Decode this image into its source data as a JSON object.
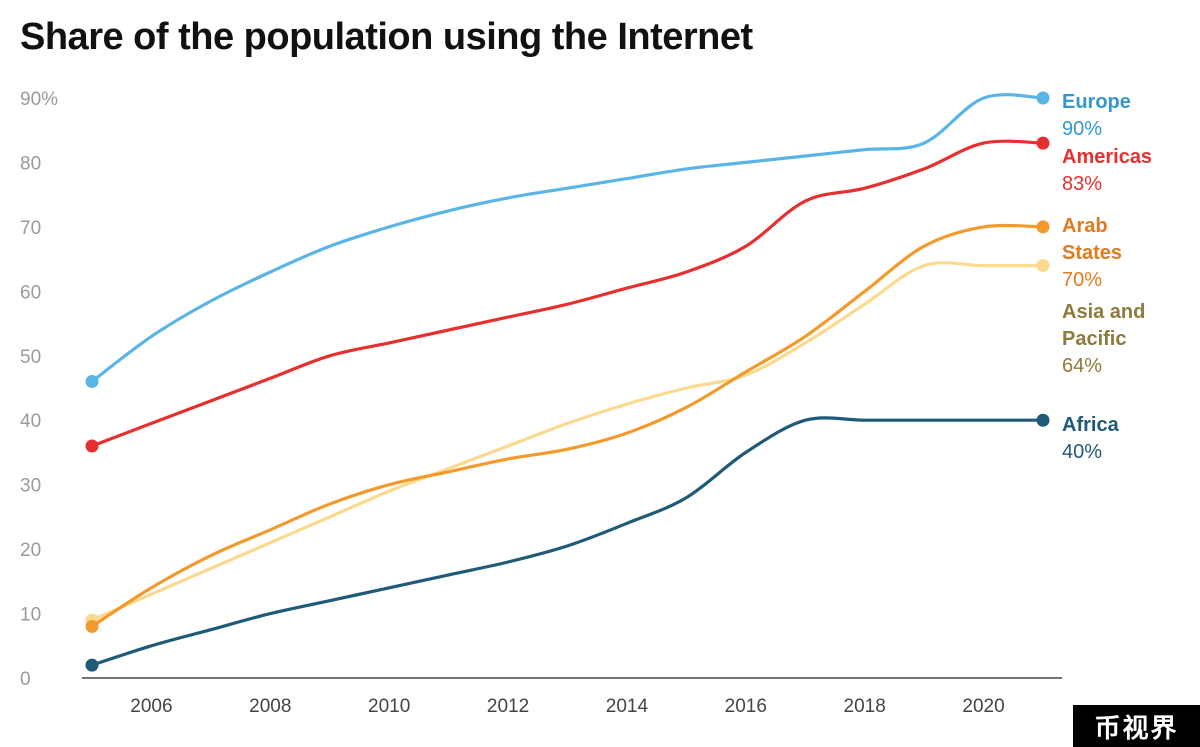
{
  "chart_data": {
    "type": "line",
    "title": "Share of the population using the Internet",
    "xlabel": "",
    "ylabel": "",
    "x": [
      2005,
      2006,
      2007,
      2008,
      2009,
      2010,
      2011,
      2012,
      2013,
      2014,
      2015,
      2016,
      2017,
      2018,
      2019,
      2020,
      2021
    ],
    "xticks": [
      "2006",
      "2008",
      "2010",
      "2012",
      "2014",
      "2016",
      "2018",
      "2020"
    ],
    "xlim": [
      2005,
      2021
    ],
    "yticks": [
      "90%",
      "80",
      "70",
      "60",
      "50",
      "40",
      "30",
      "20",
      "10",
      "0"
    ],
    "ylim": [
      0,
      90
    ],
    "series": [
      {
        "name": "Europe",
        "label_lines": [
          "Europe"
        ],
        "value_label": "90%",
        "color": "#5ab4e5",
        "label_color": "#3399cc",
        "values": [
          46,
          53,
          58.5,
          63,
          67,
          70,
          72.5,
          74.5,
          76,
          77.5,
          79,
          80,
          81,
          82,
          83,
          90,
          90
        ]
      },
      {
        "name": "Americas",
        "label_lines": [
          "Americas"
        ],
        "value_label": "83%",
        "color": "#e63030",
        "label_color": "#e63030",
        "values": [
          36,
          39.5,
          43,
          46.5,
          50,
          52,
          54,
          56,
          58,
          60.5,
          63,
          67,
          74,
          76,
          79,
          83,
          83
        ]
      },
      {
        "name": "Arab States",
        "label_lines": [
          "Arab",
          "States"
        ],
        "value_label": "70%",
        "color": "#f39a2d",
        "label_color": "#e07b1e",
        "values": [
          8,
          14,
          19,
          23,
          27,
          30,
          32,
          34,
          35.5,
          38,
          42,
          47.5,
          53,
          60,
          67,
          70,
          70
        ]
      },
      {
        "name": "Asia and Pacific",
        "label_lines": [
          "Asia and",
          "Pacific"
        ],
        "value_label": "64%",
        "color": "#fbd98f",
        "label_color": "#8f7a3a",
        "values": [
          9,
          13,
          17,
          21,
          25,
          29,
          32.5,
          36,
          39.5,
          42.5,
          45,
          47,
          52,
          58,
          64,
          64,
          64
        ]
      },
      {
        "name": "Africa",
        "label_lines": [
          "Africa"
        ],
        "value_label": "40%",
        "color": "#1f5a78",
        "label_color": "#1f5a78",
        "values": [
          2,
          5,
          7.5,
          10,
          12,
          14,
          16,
          18,
          20.5,
          24,
          28,
          35,
          40,
          40,
          40,
          40,
          40
        ]
      }
    ]
  },
  "watermark": "币视界"
}
